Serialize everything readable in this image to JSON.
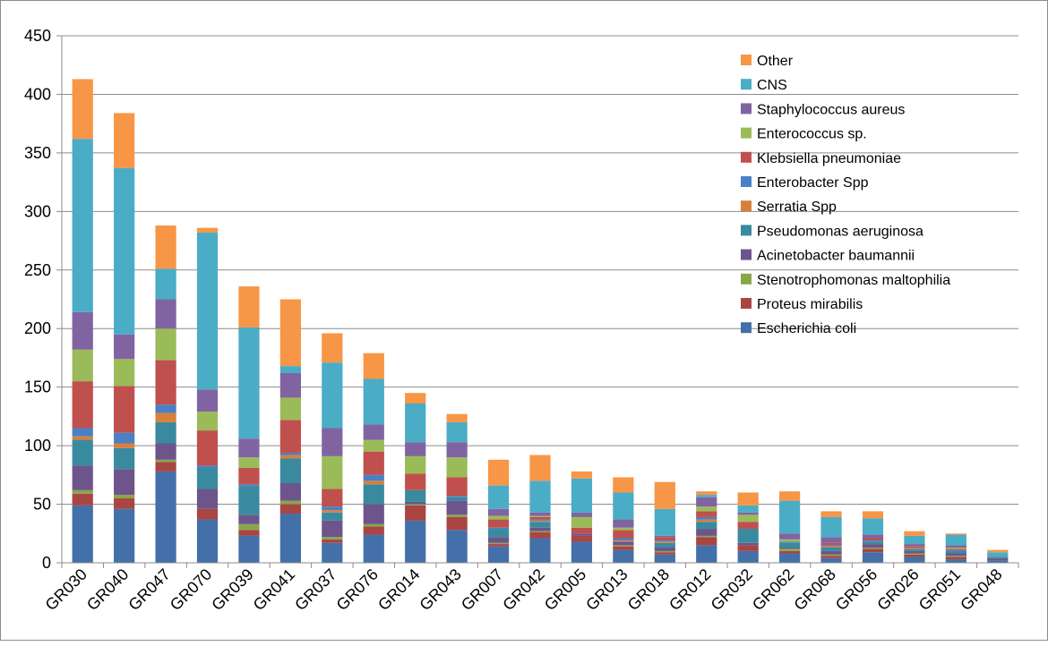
{
  "chart_data": {
    "type": "bar",
    "stacked": true,
    "title": "",
    "xlabel": "",
    "ylabel": "",
    "ylim": [
      0,
      450
    ],
    "yticks": [
      0,
      50,
      100,
      150,
      200,
      250,
      300,
      350,
      400,
      450
    ],
    "grid": true,
    "legend_position": "top-right",
    "categories": [
      "GR030",
      "GR040",
      "GR047",
      "GR070",
      "GR039",
      "GR041",
      "GR037",
      "GR076",
      "GR014",
      "GR043",
      "GR007",
      "GR042",
      "GR005",
      "GR013",
      "GR018",
      "GR012",
      "GR032",
      "GR062",
      "GR068",
      "GR056",
      "GR026",
      "GR051",
      "GR048"
    ],
    "series": [
      {
        "name": "Escherichia coli",
        "color": "#4470A9",
        "values": [
          49,
          46,
          78,
          37,
          23,
          42,
          17,
          24,
          36,
          28,
          14,
          21,
          18,
          11,
          7,
          15,
          10,
          8,
          4,
          9,
          5,
          3,
          2
        ]
      },
      {
        "name": "Proteus mirabilis",
        "color": "#A94543",
        "values": [
          10,
          9,
          8,
          9,
          5,
          8,
          3,
          7,
          13,
          11,
          2,
          5,
          5,
          3,
          2,
          7,
          5,
          2,
          2,
          3,
          2,
          2,
          0
        ]
      },
      {
        "name": "Stenotrophomonas maltophilia",
        "color": "#88A64A",
        "values": [
          3,
          3,
          2,
          0,
          5,
          3,
          2,
          2,
          1,
          2,
          1,
          1,
          0,
          1,
          1,
          1,
          0,
          2,
          1,
          1,
          1,
          1,
          0
        ]
      },
      {
        "name": "Acinetobacter baumannii",
        "color": "#6D558C",
        "values": [
          21,
          22,
          14,
          17,
          8,
          15,
          14,
          17,
          2,
          12,
          5,
          3,
          2,
          3,
          3,
          6,
          2,
          1,
          3,
          3,
          2,
          2,
          2
        ]
      },
      {
        "name": "Pseudomonas aeruginosa",
        "color": "#3A8A9F",
        "values": [
          22,
          18,
          18,
          18,
          24,
          21,
          7,
          17,
          10,
          3,
          7,
          5,
          0,
          0,
          4,
          6,
          12,
          4,
          3,
          2,
          2,
          2,
          1
        ]
      },
      {
        "name": "Serratia Spp",
        "color": "#D9803A",
        "values": [
          3,
          4,
          8,
          0,
          0,
          3,
          2,
          3,
          0,
          0,
          0,
          1,
          0,
          1,
          1,
          2,
          0,
          0,
          1,
          0,
          1,
          0,
          0
        ]
      },
      {
        "name": "Enterobacter Spp",
        "color": "#4A80C6",
        "values": [
          7,
          9,
          7,
          2,
          2,
          2,
          3,
          5,
          0,
          1,
          1,
          1,
          0,
          2,
          1,
          2,
          0,
          1,
          1,
          1,
          0,
          1,
          0
        ]
      },
      {
        "name": "Klebsiella pneumoniae",
        "color": "#C0504D",
        "values": [
          40,
          40,
          38,
          30,
          14,
          28,
          15,
          20,
          14,
          16,
          7,
          2,
          5,
          7,
          3,
          5,
          6,
          0,
          2,
          2,
          1,
          1,
          0
        ]
      },
      {
        "name": "Enterococcus sp.",
        "color": "#9BBB59",
        "values": [
          27,
          23,
          27,
          16,
          9,
          19,
          28,
          10,
          15,
          17,
          3,
          1,
          9,
          2,
          0,
          4,
          6,
          2,
          0,
          0,
          0,
          1,
          0
        ]
      },
      {
        "name": "Staphylococcus aureus",
        "color": "#8064A2",
        "values": [
          32,
          21,
          25,
          19,
          16,
          21,
          24,
          13,
          12,
          13,
          6,
          3,
          4,
          7,
          1,
          8,
          2,
          5,
          5,
          3,
          2,
          2,
          0
        ]
      },
      {
        "name": "CNS",
        "color": "#4BACC6",
        "values": [
          148,
          142,
          26,
          134,
          95,
          6,
          56,
          39,
          33,
          17,
          20,
          27,
          29,
          23,
          23,
          2,
          6,
          28,
          17,
          14,
          7,
          9,
          4
        ]
      },
      {
        "name": "Other",
        "color": "#F79646",
        "values": [
          51,
          47,
          37,
          4,
          35,
          57,
          25,
          22,
          9,
          7,
          22,
          22,
          6,
          13,
          23,
          3,
          11,
          8,
          5,
          6,
          4,
          1,
          2
        ]
      }
    ]
  }
}
